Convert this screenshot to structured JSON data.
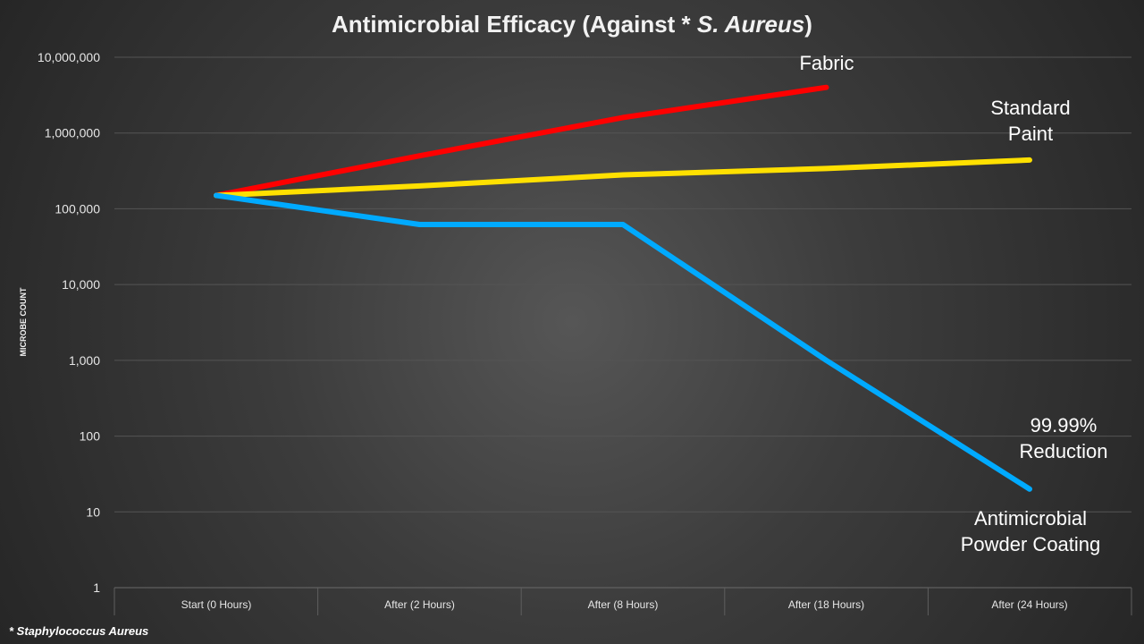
{
  "title": {
    "main": "Antimicrobial Efficacy (Against * ",
    "italic": "S. Aureus",
    "close": ")"
  },
  "footnote": "* Staphylococcus Aureus",
  "chart_data": {
    "type": "line",
    "title": "Antimicrobial Efficacy (Against * S. Aureus)",
    "xlabel": "",
    "ylabel": "MICROBE COUNT",
    "yscale": "log",
    "ylim": [
      1,
      10000000
    ],
    "yticks": [
      "1",
      "10",
      "100",
      "1,000",
      "10,000",
      "100,000",
      "1,000,000",
      "10,000,000"
    ],
    "ytick_values": [
      1,
      10,
      100,
      1000,
      10000,
      100000,
      1000000,
      10000000
    ],
    "grid": true,
    "categories": [
      "Start (0 Hours)",
      "After (2 Hours)",
      "After (8 Hours)",
      "After (18 Hours)",
      "After (24 Hours)"
    ],
    "series": [
      {
        "name": "Fabric",
        "color": "#ff0000",
        "values": [
          150000,
          500000,
          1600000,
          4000000,
          null
        ]
      },
      {
        "name": "Standard Paint",
        "color": "#ffe000",
        "values": [
          150000,
          200000,
          280000,
          340000,
          440000
        ]
      },
      {
        "name": "Antimicrobial Powder Coating",
        "color": "#00aaff",
        "values": [
          150000,
          62000,
          62000,
          1000,
          20
        ]
      }
    ],
    "annotations": [
      {
        "lines": [
          "Fabric"
        ]
      },
      {
        "lines": [
          "Standard",
          "Paint"
        ]
      },
      {
        "lines": [
          "99.99%",
          "Reduction"
        ]
      },
      {
        "lines": [
          "Antimicrobial",
          "Powder Coating"
        ]
      }
    ]
  }
}
